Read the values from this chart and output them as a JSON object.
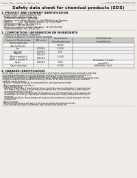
{
  "bg_color": "#f0ede8",
  "header_top_left": "Product Name: Lithium Ion Battery Cell",
  "header_top_right": "Substance Number: TDM15010-00010\nEstablishment / Revision: Dec.1.2010",
  "title": "Safety data sheet for chemical products (SDS)",
  "section1_title": "1. PRODUCT AND COMPANY IDENTIFICATION",
  "section1_lines": [
    "  • Product name: Lithium Ion Battery Cell",
    "  • Product code: Cylindrical-type cell",
    "     (IFR18650U, IFR18650L, IFR18650A)",
    "  • Company name:   Bonpo Electric Co., Ltd., Mobile Energy Company",
    "  • Address:          2201, Kaminahara, Sumoto-City, Hyogo, Japan",
    "  • Telephone number:   +81-799-26-4111",
    "  • Fax number:  +81-799-26-4121",
    "  • Emergency telephone number (Weekday): +81-799-26-2962",
    "     (Night and holiday): +81-799-26-2101"
  ],
  "section2_title": "2. COMPOSITION / INFORMATION ON INGREDIENTS",
  "section2_intro": "  • Substance or preparation: Preparation",
  "section2_sub": "    • Information about the chemical nature of product:",
  "table_headers": [
    "Component / Chemical name",
    "CAS number",
    "Concentration /\nConcentration range",
    "Classification and\nhazard labeling"
  ],
  "table_rows": [
    [
      "Lithium cobalt oxide\n(LiMn-CoO(LiCoO))",
      "-",
      "(30-60%)",
      "-"
    ],
    [
      "Iron",
      "7439-89-6",
      "(5-30%)",
      "-"
    ],
    [
      "Aluminum",
      "7429-90-5",
      "2.5%",
      "-"
    ],
    [
      "Graphite\n(Metal in graphite-1)\n(Al-Mo in graphite-1)",
      "7782-42-5\n7782-42-5",
      "(5-20%)",
      "-"
    ],
    [
      "Copper",
      "7440-50-8",
      "0-10%",
      "Sensitization of the skin\ngroup R42.2"
    ],
    [
      "Organic electrolyte",
      "-",
      "(5-20%)",
      "Inflammatory liquid"
    ]
  ],
  "section3_title": "3. HAZARDS IDENTIFICATION",
  "section3_lines": [
    "  For the battery cell, chemical materials are stored in a hermetically sealed metal case, designed to withstand",
    "  temperatures and pressures encountered during normal use. As a result, during normal use, there is no",
    "  physical danger of ignition or explosion and there is no danger of hazardous materials leakage.",
    "    However, if exposed to a fire, added mechanical shocks, decomposed, or electrically short-circuited may cause,",
    "  fire gas emitted cannot be operated. The battery cell case will be breached at the extreme, hazardous",
    "  materials may be released.",
    "    Moreover, if heated strongly by the surrounding fire, some gas may be emitted.",
    "",
    "  • Most important hazard and effects:",
    "    Human health effects:",
    "      Inhalation: The release of the electrolyte has an anesthetic action and stimulates in respiratory tract.",
    "      Skin contact: The release of the electrolyte stimulates a skin. The electrolyte skin contact causes a",
    "      sore and stimulation on the skin.",
    "      Eye contact: The release of the electrolyte stimulates eyes. The electrolyte eye contact causes a sore",
    "      and stimulation on the eye. Especially, a substance that causes a strong inflammation of the eye is",
    "      contained.",
    "      Environmental effects: Since a battery cell remains in the environment, do not throw out it into the",
    "      environment.",
    "",
    "  • Specific hazards:",
    "    If the electrolyte contacts with water, it will generate detrimental hydrogen fluoride.",
    "    Since the used electrolyte is inflammable liquid, do not bring close to fire."
  ]
}
